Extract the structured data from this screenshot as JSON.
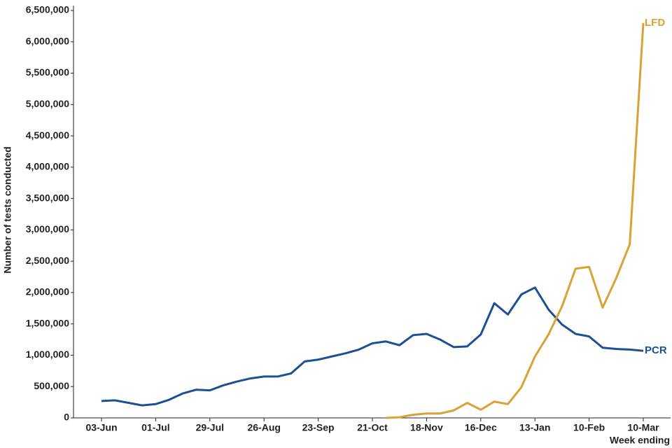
{
  "chart_data": {
    "type": "line",
    "y_label": "Number of tests conducted",
    "x_label": "Week ending",
    "categories": [
      "03-Jun",
      null,
      null,
      null,
      "01-Jul",
      null,
      null,
      null,
      "29-Jul",
      null,
      null,
      null,
      "26-Aug",
      null,
      null,
      null,
      "23-Sep",
      null,
      null,
      null,
      "21-Oct",
      null,
      null,
      null,
      "18-Nov",
      null,
      null,
      null,
      "16-Dec",
      null,
      null,
      null,
      "13-Jan",
      null,
      null,
      null,
      "10-Feb",
      null,
      null,
      null,
      "10-Mar"
    ],
    "series": [
      {
        "name": "PCR",
        "color": "#1c4f96",
        "values": [
          270000,
          280000,
          240000,
          200000,
          220000,
          290000,
          390000,
          450000,
          440000,
          520000,
          580000,
          630000,
          660000,
          660000,
          710000,
          900000,
          930000,
          980000,
          1030000,
          1090000,
          1190000,
          1220000,
          1160000,
          1320000,
          1340000,
          1250000,
          1130000,
          1140000,
          1330000,
          1830000,
          1650000,
          1970000,
          2080000,
          1730000,
          1490000,
          1340000,
          1300000,
          1120000,
          1100000,
          1090000,
          1070000
        ]
      },
      {
        "name": "LFD",
        "color": "#d9a236",
        "values": [
          null,
          null,
          null,
          null,
          null,
          null,
          null,
          null,
          null,
          null,
          null,
          null,
          null,
          null,
          null,
          null,
          null,
          null,
          null,
          null,
          null,
          0,
          10000,
          50000,
          70000,
          70000,
          120000,
          240000,
          130000,
          260000,
          220000,
          490000,
          980000,
          1330000,
          1780000,
          2380000,
          2410000,
          1760000,
          2230000,
          2770000,
          6300000
        ]
      }
    ],
    "ylim": [
      0,
      6500000
    ],
    "yticks": [
      0,
      {
        "value": 500000,
        "label": "500,000"
      },
      {
        "value": 1000000,
        "label": "1,000,000"
      },
      {
        "value": 1500000,
        "label": "1,500,000"
      },
      {
        "value": 2000000,
        "label": "2,000,000"
      },
      {
        "value": 2500000,
        "label": "2,500,000"
      },
      {
        "value": 3000000,
        "label": "3,000,000"
      },
      {
        "value": 3500000,
        "label": "3,500,000"
      },
      {
        "value": 4000000,
        "label": "4,000,000"
      },
      {
        "value": 4500000,
        "label": "4,500,000"
      },
      {
        "value": 5000000,
        "label": "5,000,000"
      },
      {
        "value": 5500000,
        "label": "5,500,000"
      },
      {
        "value": 6000000,
        "label": "6,000,000"
      },
      {
        "value": 6500000,
        "label": "6,500,000"
      }
    ],
    "grid": false
  }
}
